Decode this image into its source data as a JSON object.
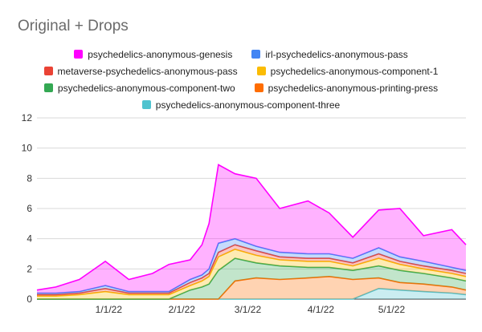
{
  "chart_data": {
    "type": "area",
    "stacked": true,
    "title": "Original + Drops",
    "ylim": [
      0,
      12
    ],
    "y_ticks": [
      "0",
      "2",
      "4",
      "6",
      "8",
      "10",
      "12"
    ],
    "x_start": "2021-12-07",
    "x_end": "2022-06-07",
    "x_ticks": [
      {
        "date": "2022-01-01",
        "label": "1/1/22"
      },
      {
        "date": "2022-02-01",
        "label": "2/1/22"
      },
      {
        "date": "2022-03-01",
        "label": "3/1/22"
      },
      {
        "date": "2022-04-01",
        "label": "4/1/22"
      },
      {
        "date": "2022-05-01",
        "label": "5/1/22"
      }
    ],
    "legend_placement": "top",
    "grid": true,
    "sample_dates": [
      "2021-12-07",
      "2021-12-15",
      "2021-12-25",
      "2022-01-05",
      "2022-01-15",
      "2022-01-25",
      "2022-02-01",
      "2022-02-10",
      "2022-02-15",
      "2022-02-18",
      "2022-02-22",
      "2022-03-01",
      "2022-03-10",
      "2022-03-20",
      "2022-04-01",
      "2022-04-10",
      "2022-04-20",
      "2022-05-01",
      "2022-05-10",
      "2022-05-20",
      "2022-06-01",
      "2022-06-07"
    ],
    "series": [
      {
        "name": "psychedelics-anonymous-component-three",
        "color": "#4fc3cf",
        "values": [
          0,
          0,
          0,
          0,
          0,
          0,
          0,
          0,
          0,
          0,
          0,
          0,
          0,
          0,
          0,
          0,
          0,
          0.7,
          0.6,
          0.5,
          0.4,
          0.3
        ]
      },
      {
        "name": "psychedelics-anonymous-printing-press",
        "color": "#ff6d00",
        "values": [
          0,
          0,
          0,
          0,
          0,
          0,
          0,
          0,
          0,
          0,
          0,
          1.2,
          1.4,
          1.3,
          1.4,
          1.5,
          1.3,
          0.7,
          0.5,
          0.5,
          0.4,
          0.3
        ]
      },
      {
        "name": "psychedelics-anonymous-component-two",
        "color": "#34a853",
        "values": [
          0,
          0,
          0,
          0,
          0,
          0,
          0,
          0.6,
          0.8,
          1.0,
          1.9,
          1.5,
          1.0,
          0.9,
          0.7,
          0.6,
          0.6,
          0.8,
          0.8,
          0.7,
          0.6,
          0.6
        ]
      },
      {
        "name": "psychedelics-anonymous-component-1",
        "color": "#fbbc04",
        "values": [
          0.2,
          0.2,
          0.3,
          0.5,
          0.3,
          0.3,
          0.3,
          0.3,
          0.4,
          0.5,
          0.9,
          0.6,
          0.5,
          0.4,
          0.4,
          0.4,
          0.3,
          0.5,
          0.4,
          0.3,
          0.3,
          0.3
        ]
      },
      {
        "name": "metaverse-psychedelics-anonymous-pass",
        "color": "#ea4335",
        "values": [
          0.1,
          0.1,
          0.1,
          0.2,
          0.1,
          0.1,
          0.1,
          0.2,
          0.2,
          0.2,
          0.3,
          0.3,
          0.3,
          0.2,
          0.2,
          0.2,
          0.2,
          0.3,
          0.2,
          0.2,
          0.2,
          0.2
        ]
      },
      {
        "name": "irl-psychedelics-anonymous-pass",
        "color": "#4285f4",
        "values": [
          0.1,
          0.1,
          0.1,
          0.2,
          0.1,
          0.1,
          0.1,
          0.2,
          0.2,
          0.3,
          0.6,
          0.4,
          0.3,
          0.3,
          0.3,
          0.3,
          0.3,
          0.4,
          0.3,
          0.3,
          0.2,
          0.2
        ]
      },
      {
        "name": "psychedelics-anonymous-genesis",
        "color": "#ff00ff",
        "values": [
          0.2,
          0.4,
          0.8,
          1.6,
          0.8,
          1.2,
          1.8,
          1.3,
          2.0,
          3.0,
          5.2,
          4.3,
          4.5,
          2.9,
          3.5,
          2.7,
          1.4,
          2.5,
          3.2,
          1.7,
          2.5,
          1.7
        ]
      }
    ]
  },
  "legend_rows": [
    [
      {
        "name": "psychedelics-anonymous-genesis",
        "color": "#ff00ff"
      },
      {
        "name": "irl-psychedelics-anonymous-pass",
        "color": "#4285f4"
      }
    ],
    [
      {
        "name": "metaverse-psychedelics-anonymous-pass",
        "color": "#ea4335"
      },
      {
        "name": "psychedelics-anonymous-component-1",
        "color": "#fbbc04"
      }
    ],
    [
      {
        "name": "psychedelics-anonymous-component-two",
        "color": "#34a853"
      },
      {
        "name": "psychedelics-anonymous-printing-press",
        "color": "#ff6d00"
      }
    ],
    [
      {
        "name": "psychedelics-anonymous-component-three",
        "color": "#4fc3cf"
      }
    ]
  ]
}
